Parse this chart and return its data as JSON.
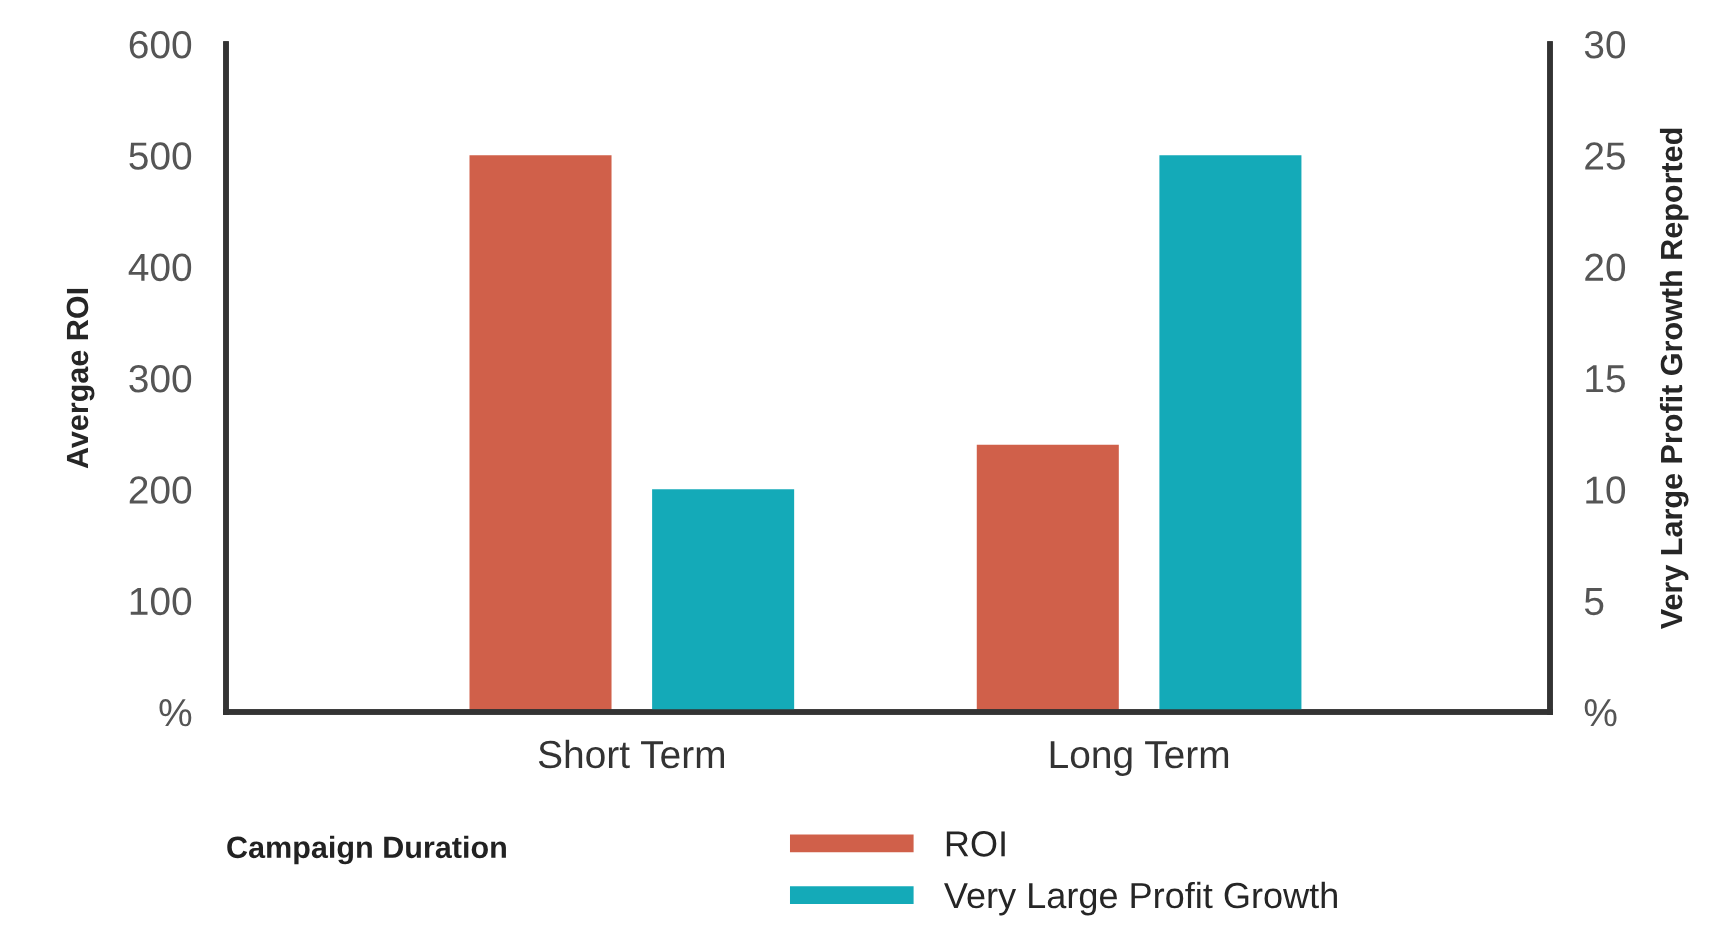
{
  "chart_data": {
    "type": "bar",
    "xlabel": "Campaign Duration",
    "ylabel": "Avergae ROI",
    "y2label": "Very Large Profit Growth Reported",
    "categories": [
      "Short Term",
      "Long Term"
    ],
    "series": [
      {
        "name": "ROI",
        "color": "#d0604a",
        "values": [
          500,
          240
        ]
      },
      {
        "name": "Very Large Profit Growth",
        "color": "#14aab8",
        "values": [
          10,
          25
        ],
        "axis": "y2"
      }
    ],
    "ylim": [
      0,
      600
    ],
    "yticks": [
      {
        "value": 0,
        "label": "%"
      },
      100,
      200,
      300,
      400,
      500,
      600
    ],
    "y2lim": [
      0,
      30
    ],
    "y2ticks": [
      {
        "value": 0,
        "label": "%"
      },
      5,
      10,
      15,
      20,
      25,
      30
    ],
    "grid": false,
    "legend": "bottom"
  }
}
